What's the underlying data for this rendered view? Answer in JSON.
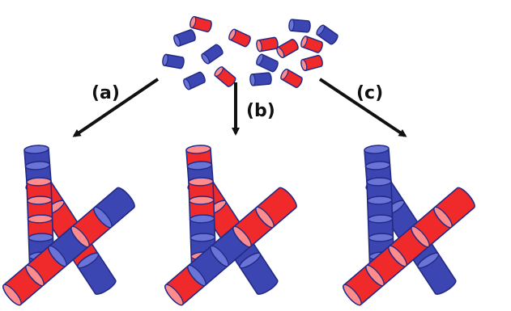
{
  "labels": {
    "a": "(a)",
    "b": "(b)",
    "c": "(c)"
  },
  "colors": {
    "red": "#f02a2a",
    "red_light": "#ff8c8c",
    "blue": "#3c46b2",
    "blue_light": "#6a73d6",
    "outline": "#232a86",
    "arrow": "#111111"
  },
  "segments_per_tube": 5,
  "assemblies": [
    {
      "id": "a",
      "vertical_top": [
        "blue",
        "blue"
      ],
      "vertical_segments": [
        "red",
        "red",
        "red",
        "blue",
        "blue"
      ],
      "diagonal_segments": [
        "red",
        "red",
        "blue",
        "red",
        "blue"
      ]
    },
    {
      "id": "b",
      "vertical_top": [
        "red",
        "blue"
      ],
      "vertical_segments": [
        "red",
        "red",
        "blue",
        "blue",
        "red"
      ],
      "diagonal_segments": [
        "red",
        "blue",
        "blue",
        "red",
        "red"
      ]
    },
    {
      "id": "c",
      "vertical_top": [
        "blue",
        "blue"
      ],
      "vertical_segments": [
        "blue",
        "blue",
        "blue",
        "blue",
        "blue"
      ],
      "diagonal_segments": [
        "red",
        "red",
        "red",
        "red",
        "red"
      ]
    }
  ],
  "loose_units": [
    "blue",
    "red",
    "red",
    "blue",
    "blue",
    "red",
    "red",
    "blue",
    "red",
    "red",
    "blue",
    "red",
    "blue",
    "blue",
    "red",
    "blue"
  ]
}
